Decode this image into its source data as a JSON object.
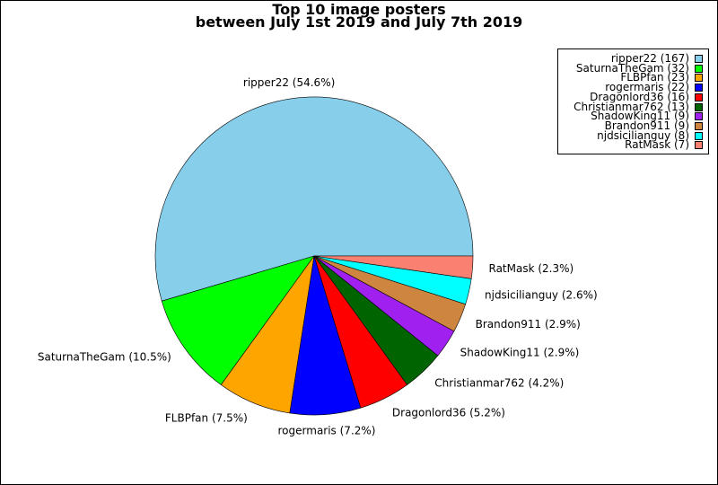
{
  "chart_data": {
    "type": "pie",
    "title": "Top 10 image posters",
    "subtitle": "between July 1st 2019 and July 7th 2019",
    "legend_placement": "top-right",
    "slices": [
      {
        "name": "ripper22",
        "value": 167,
        "percent_label": "ripper22 (54.6%)",
        "legend_label": "ripper22 (167)",
        "color": "#87ceeb"
      },
      {
        "name": "SaturnaTheGam",
        "value": 32,
        "percent_label": "SaturnaTheGam (10.5%)",
        "legend_label": "SaturnaTheGam (32)",
        "color": "#00ff00"
      },
      {
        "name": "FLBPfan",
        "value": 23,
        "percent_label": "FLBPfan (7.5%)",
        "legend_label": "FLBPfan (23)",
        "color": "#ffa500"
      },
      {
        "name": "rogermaris",
        "value": 22,
        "percent_label": "rogermaris (7.2%)",
        "legend_label": "rogermaris (22)",
        "color": "#0000ff"
      },
      {
        "name": "Dragonlord36",
        "value": 16,
        "percent_label": "Dragonlord36 (5.2%)",
        "legend_label": "Dragonlord36 (16)",
        "color": "#ff0000"
      },
      {
        "name": "Christianmar762",
        "value": 13,
        "percent_label": "Christianmar762 (4.2%)",
        "legend_label": "Christianmar762 (13)",
        "color": "#006400"
      },
      {
        "name": "ShadowKing11",
        "value": 9,
        "percent_label": "ShadowKing11 (2.9%)",
        "legend_label": "ShadowKing11 (9)",
        "color": "#a020f0"
      },
      {
        "name": "Brandon911",
        "value": 9,
        "percent_label": "Brandon911 (2.9%)",
        "legend_label": "Brandon911 (9)",
        "color": "#cd853f"
      },
      {
        "name": "njdsicilianguy",
        "value": 8,
        "percent_label": "njdsicilianguy (2.6%)",
        "legend_label": "njdsicilianguy (8)",
        "color": "#00ffff"
      },
      {
        "name": "RatMask",
        "value": 7,
        "percent_label": "RatMask (2.3%)",
        "legend_label": "RatMask (7)",
        "color": "#fa8072"
      }
    ]
  }
}
